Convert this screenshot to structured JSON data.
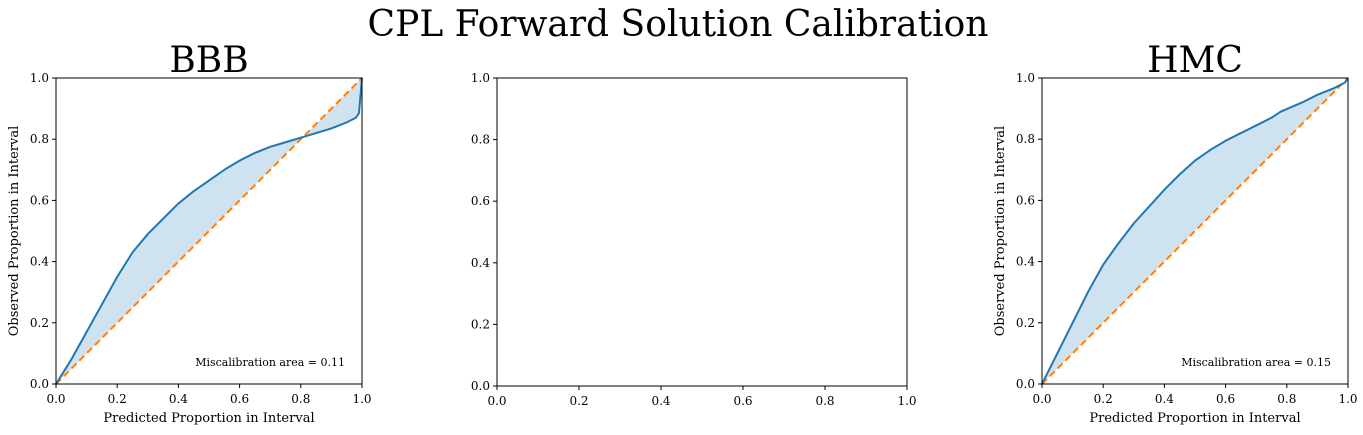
{
  "figure": {
    "title": "CPL Forward Solution Calibration"
  },
  "colors": {
    "curve": "#1f77b4",
    "fill": "#cfe2f0",
    "ideal": "#ff7f0e"
  },
  "chart_data": [
    {
      "type": "area",
      "title": "BBB",
      "xlabel": "Predicted Proportion in Interval",
      "ylabel": "Observed Proportion in Interval",
      "xlim": [
        0,
        1
      ],
      "ylim": [
        0,
        1
      ],
      "xticks": [
        "0.0",
        "0.2",
        "0.4",
        "0.6",
        "0.8",
        "1.0"
      ],
      "yticks": [
        "0.0",
        "0.2",
        "0.4",
        "0.6",
        "0.8",
        "1.0"
      ],
      "annotation": "Miscalibration area = 0.11",
      "series": [
        {
          "x": [
            0,
            0.05,
            0.1,
            0.15,
            0.2,
            0.25,
            0.3,
            0.35,
            0.4,
            0.45,
            0.5,
            0.55,
            0.6,
            0.65,
            0.7,
            0.75,
            0.8,
            0.85,
            0.9,
            0.95,
            0.98,
            0.99,
            1.0
          ],
          "y": [
            0,
            0.08,
            0.17,
            0.26,
            0.35,
            0.43,
            0.49,
            0.54,
            0.59,
            0.63,
            0.665,
            0.7,
            0.73,
            0.755,
            0.775,
            0.79,
            0.805,
            0.82,
            0.835,
            0.855,
            0.87,
            0.885,
            1.0
          ]
        },
        {
          "x": [
            0,
            1
          ],
          "y": [
            0,
            1
          ]
        }
      ]
    },
    {
      "type": "line",
      "title": "",
      "xlabel": "",
      "ylabel": "",
      "xlim": [
        0,
        1
      ],
      "ylim": [
        0,
        1
      ],
      "xticks": [
        "0.0",
        "0.2",
        "0.4",
        "0.6",
        "0.8",
        "1.0"
      ],
      "yticks": [
        "0.0",
        "0.2",
        "0.4",
        "0.6",
        "0.8",
        "1.0"
      ],
      "annotation": "",
      "series": []
    },
    {
      "type": "area",
      "title": "HMC",
      "xlabel": "Predicted Proportion in Interval",
      "ylabel": "Observed Proportion in Interval",
      "xlim": [
        0,
        1
      ],
      "ylim": [
        0,
        1
      ],
      "xticks": [
        "0.0",
        "0.2",
        "0.4",
        "0.6",
        "0.8",
        "1.0"
      ],
      "yticks": [
        "0.0",
        "0.2",
        "0.4",
        "0.6",
        "0.8",
        "1.0"
      ],
      "annotation": "Miscalibration area = 0.15",
      "series": [
        {
          "x": [
            0,
            0.05,
            0.1,
            0.15,
            0.2,
            0.25,
            0.3,
            0.35,
            0.4,
            0.45,
            0.5,
            0.55,
            0.6,
            0.65,
            0.7,
            0.75,
            0.78,
            0.85,
            0.9,
            0.95,
            0.99,
            1.0
          ],
          "y": [
            0,
            0.1,
            0.2,
            0.3,
            0.39,
            0.46,
            0.525,
            0.58,
            0.635,
            0.685,
            0.73,
            0.765,
            0.795,
            0.82,
            0.845,
            0.87,
            0.89,
            0.92,
            0.945,
            0.965,
            0.985,
            1.0
          ]
        },
        {
          "x": [
            0,
            1
          ],
          "y": [
            0,
            1
          ]
        }
      ]
    }
  ]
}
